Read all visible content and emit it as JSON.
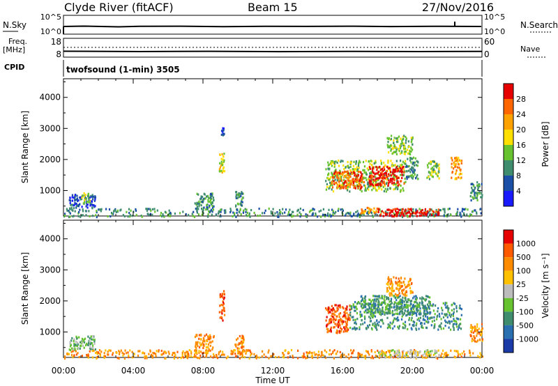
{
  "header": {
    "station": "Clyde River (fitACF)",
    "beam": "Beam 15",
    "date": "27/Nov/2016"
  },
  "top_panels": {
    "nsky": {
      "label": "N.Sky",
      "ticks_left": [
        "10^5",
        "10^0"
      ],
      "ticks_right": [
        "10^5",
        "10^0"
      ],
      "right_label": "N.Search"
    },
    "freq": {
      "label_line1": "Freq.",
      "label_line2": "[MHz]",
      "ticks_left": [
        "18",
        "8"
      ],
      "ticks_right": [
        "60",
        "0"
      ],
      "right_label": "Nave"
    },
    "cpid": {
      "label": "CPID",
      "program": "twofsound (1-min) 3505"
    }
  },
  "chart_data": [
    {
      "type": "heatmap",
      "name": "power",
      "xlabel": "Time UT",
      "ylabel": "Slant Range [km]",
      "x_ticks": [
        "00:00",
        "04:00",
        "08:00",
        "12:00",
        "16:00",
        "20:00",
        "00:00"
      ],
      "x_range_hours": [
        0,
        24
      ],
      "y_ticks": [
        1000,
        2000,
        3000,
        4000
      ],
      "ylim": [
        180,
        4600
      ],
      "colorbar": {
        "label": "Power [dB]",
        "ticks": [
          "4",
          "8",
          "12",
          "16",
          "20",
          "24",
          "28"
        ],
        "colors": [
          "#1a1aff",
          "#1b4fa8",
          "#3f8c6e",
          "#66c22e",
          "#ffdf00",
          "#ffa200",
          "#ff6600",
          "#e60000"
        ]
      },
      "regions": [
        {
          "t0": 0.0,
          "t1": 24.0,
          "r0": 180,
          "r1": 450,
          "level": 2
        },
        {
          "t0": 0.3,
          "t1": 1.8,
          "r0": 450,
          "r1": 900,
          "level": 1
        },
        {
          "t0": 1.0,
          "t1": 1.5,
          "r0": 600,
          "r1": 950,
          "level": 3
        },
        {
          "t0": 7.5,
          "t1": 8.6,
          "r0": 350,
          "r1": 950,
          "level": 2
        },
        {
          "t0": 8.9,
          "t1": 9.2,
          "r0": 1600,
          "r1": 2350,
          "level": 4
        },
        {
          "t0": 9.0,
          "t1": 9.2,
          "r0": 2800,
          "r1": 3050,
          "level": 1
        },
        {
          "t0": 9.8,
          "t1": 10.3,
          "r0": 300,
          "r1": 1000,
          "level": 2
        },
        {
          "t0": 15.0,
          "t1": 19.6,
          "r0": 1000,
          "r1": 2000,
          "level": 3
        },
        {
          "t0": 15.3,
          "t1": 17.2,
          "r0": 1100,
          "r1": 1650,
          "level": 6
        },
        {
          "t0": 17.5,
          "t1": 19.5,
          "r0": 1200,
          "r1": 1800,
          "level": 7
        },
        {
          "t0": 19.6,
          "t1": 20.3,
          "r0": 1400,
          "r1": 2100,
          "level": 2
        },
        {
          "t0": 20.8,
          "t1": 21.5,
          "r0": 1400,
          "r1": 2000,
          "level": 3
        },
        {
          "t0": 22.2,
          "t1": 22.8,
          "r0": 1400,
          "r1": 2100,
          "level": 5
        },
        {
          "t0": 23.3,
          "t1": 24.0,
          "r0": 700,
          "r1": 1300,
          "level": 2
        },
        {
          "t0": 18.0,
          "t1": 21.5,
          "r0": 200,
          "r1": 450,
          "level": 7
        },
        {
          "t0": 17.0,
          "t1": 18.0,
          "r0": 300,
          "r1": 500,
          "level": 5
        },
        {
          "t0": 18.5,
          "t1": 20.0,
          "r0": 2200,
          "r1": 2800,
          "level": 3
        }
      ]
    },
    {
      "type": "heatmap",
      "name": "velocity",
      "xlabel": "Time UT",
      "ylabel": "Slant Range [km]",
      "x_ticks": [
        "00:00",
        "04:00",
        "08:00",
        "12:00",
        "16:00",
        "20:00",
        "00:00"
      ],
      "x_range_hours": [
        0,
        24
      ],
      "y_ticks": [
        1000,
        2000,
        3000,
        4000
      ],
      "ylim": [
        180,
        4600
      ],
      "colorbar": {
        "label": "Velocity [m s⁻¹]",
        "ticks": [
          "1000",
          "500",
          "100",
          "25",
          "-25",
          "-100",
          "-500",
          "-1000"
        ],
        "colors": [
          "#1a3aa8",
          "#2a6fb0",
          "#3f8c6e",
          "#66c22e",
          "#bcbcbc",
          "#ffc000",
          "#ff8c00",
          "#ff5a00",
          "#e60000"
        ]
      },
      "regions": [
        {
          "t0": 0.0,
          "t1": 24.0,
          "r0": 180,
          "r1": 450,
          "level": 6
        },
        {
          "t0": 0.3,
          "t1": 1.8,
          "r0": 450,
          "r1": 900,
          "level": 3
        },
        {
          "t0": 7.5,
          "t1": 8.6,
          "r0": 350,
          "r1": 950,
          "level": 6
        },
        {
          "t0": 8.9,
          "t1": 9.2,
          "r0": 1400,
          "r1": 2350,
          "level": 7
        },
        {
          "t0": 9.8,
          "t1": 10.3,
          "r0": 300,
          "r1": 1000,
          "level": 6
        },
        {
          "t0": 15.0,
          "t1": 16.4,
          "r0": 1000,
          "r1": 1900,
          "level": 7
        },
        {
          "t0": 16.4,
          "t1": 22.8,
          "r0": 1100,
          "r1": 2000,
          "level": 2
        },
        {
          "t0": 17.0,
          "t1": 21.0,
          "r0": 1600,
          "r1": 2200,
          "level": 2
        },
        {
          "t0": 18.0,
          "t1": 21.5,
          "r0": 200,
          "r1": 450,
          "level": 4
        },
        {
          "t0": 23.3,
          "t1": 24.0,
          "r0": 700,
          "r1": 1300,
          "level": 6
        },
        {
          "t0": 18.5,
          "t1": 20.0,
          "r0": 2200,
          "r1": 2800,
          "level": 6
        }
      ]
    }
  ]
}
